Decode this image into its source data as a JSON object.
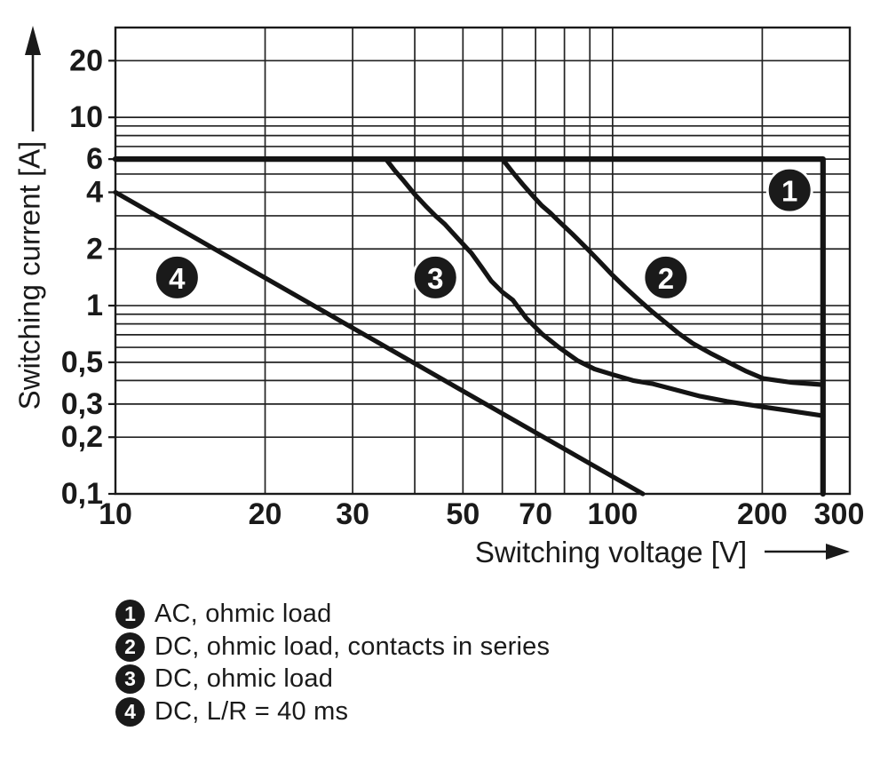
{
  "page": {
    "background": "#ffffff",
    "ink": "#1a1a1a"
  },
  "chart_data": {
    "type": "line",
    "title": "",
    "xlabel": "Switching voltage [V]",
    "ylabel": "Switching current [A]",
    "x_scale": "log",
    "y_scale": "log",
    "xlim": [
      10,
      300
    ],
    "ylim": [
      0.1,
      30
    ],
    "grid": "on",
    "legend_position": "below-left",
    "x_tick_labels": [
      {
        "v": 10,
        "label": "10",
        "dx": 0
      },
      {
        "v": 20,
        "label": "20",
        "dx": 0
      },
      {
        "v": 30,
        "label": "30",
        "dx": 0
      },
      {
        "v": 50,
        "label": "50",
        "dx": 0
      },
      {
        "v": 70,
        "label": "70",
        "dx": 0
      },
      {
        "v": 100,
        "label": "100",
        "dx": 0
      },
      {
        "v": 200,
        "label": "200",
        "dx": 0
      },
      {
        "v": 300,
        "label": "300",
        "dx": -12
      }
    ],
    "y_tick_labels": [
      {
        "v": 20,
        "label": "20"
      },
      {
        "v": 10,
        "label": "10"
      },
      {
        "v": 6,
        "label": "6"
      },
      {
        "v": 4,
        "label": "4"
      },
      {
        "v": 2,
        "label": "2"
      },
      {
        "v": 1,
        "label": "1"
      },
      {
        "v": 0.5,
        "label": "0,5"
      },
      {
        "v": 0.3,
        "label": "0,3"
      },
      {
        "v": 0.2,
        "label": "0,2"
      },
      {
        "v": 0.1,
        "label": "0,1"
      }
    ],
    "x_gridlines": [
      20,
      30,
      40,
      50,
      60,
      70,
      80,
      90,
      100,
      200
    ],
    "y_gridlines": [
      0.2,
      0.3,
      0.4,
      0.5,
      0.6,
      0.7,
      0.8,
      0.9,
      1,
      2,
      3,
      4,
      5,
      6,
      7,
      8,
      9,
      10,
      20
    ],
    "series": [
      {
        "num": "1",
        "name": "AC, ohmic load",
        "stroke_width": 6.2,
        "marker_at": [
          227,
          4.1
        ],
        "points": [
          [
            10,
            6
          ],
          [
            265,
            6
          ],
          [
            265,
            0.1
          ]
        ]
      },
      {
        "num": "2",
        "name": "DC, ohmic load, contacts in series",
        "stroke_width": 5.2,
        "marker_at": [
          128,
          1.41
        ],
        "points": [
          [
            60,
            6
          ],
          [
            63,
            5.1
          ],
          [
            66,
            4.4
          ],
          [
            69,
            3.85
          ],
          [
            72,
            3.4
          ],
          [
            75,
            3.1
          ],
          [
            78,
            2.8
          ],
          [
            83,
            2.4
          ],
          [
            89,
            2.0
          ],
          [
            94,
            1.72
          ],
          [
            100,
            1.45
          ],
          [
            106,
            1.25
          ],
          [
            113,
            1.07
          ],
          [
            120,
            0.93
          ],
          [
            128,
            0.81
          ],
          [
            136,
            0.71
          ],
          [
            145,
            0.63
          ],
          [
            157,
            0.56
          ],
          [
            171,
            0.5
          ],
          [
            185,
            0.45
          ],
          [
            201,
            0.41
          ],
          [
            215,
            0.4
          ],
          [
            230,
            0.39
          ],
          [
            247,
            0.385
          ],
          [
            265,
            0.38
          ]
        ]
      },
      {
        "num": "3",
        "name": "DC, ohmic load",
        "stroke_width": 5.2,
        "marker_at": [
          44,
          1.41
        ],
        "points": [
          [
            35,
            6
          ],
          [
            36.5,
            5.2
          ],
          [
            38,
            4.6
          ],
          [
            40,
            3.9
          ],
          [
            42,
            3.4
          ],
          [
            44,
            3.0
          ],
          [
            46,
            2.7
          ],
          [
            49,
            2.25
          ],
          [
            52,
            1.9
          ],
          [
            54.5,
            1.6
          ],
          [
            57,
            1.35
          ],
          [
            60,
            1.18
          ],
          [
            63,
            1.07
          ],
          [
            67,
            0.86
          ],
          [
            72,
            0.71
          ],
          [
            78,
            0.6
          ],
          [
            85,
            0.51
          ],
          [
            92,
            0.46
          ],
          [
            100,
            0.43
          ],
          [
            110,
            0.4
          ],
          [
            120,
            0.385
          ],
          [
            135,
            0.355
          ],
          [
            150,
            0.33
          ],
          [
            170,
            0.31
          ],
          [
            200,
            0.29
          ],
          [
            230,
            0.275
          ],
          [
            265,
            0.26
          ]
        ]
      },
      {
        "num": "4",
        "name": "DC, L/R = 40 ms",
        "stroke_width": 5.2,
        "marker_at": [
          13.3,
          1.41
        ],
        "points": [
          [
            10,
            4
          ],
          [
            115,
            0.1
          ]
        ]
      }
    ]
  },
  "legend": {
    "items": [
      {
        "num": "1",
        "label": "AC, ohmic load"
      },
      {
        "num": "2",
        "label": "DC, ohmic load, contacts in series"
      },
      {
        "num": "3",
        "label": "DC, ohmic load"
      },
      {
        "num": "4",
        "label": "DC, L/R = 40 ms"
      }
    ]
  }
}
